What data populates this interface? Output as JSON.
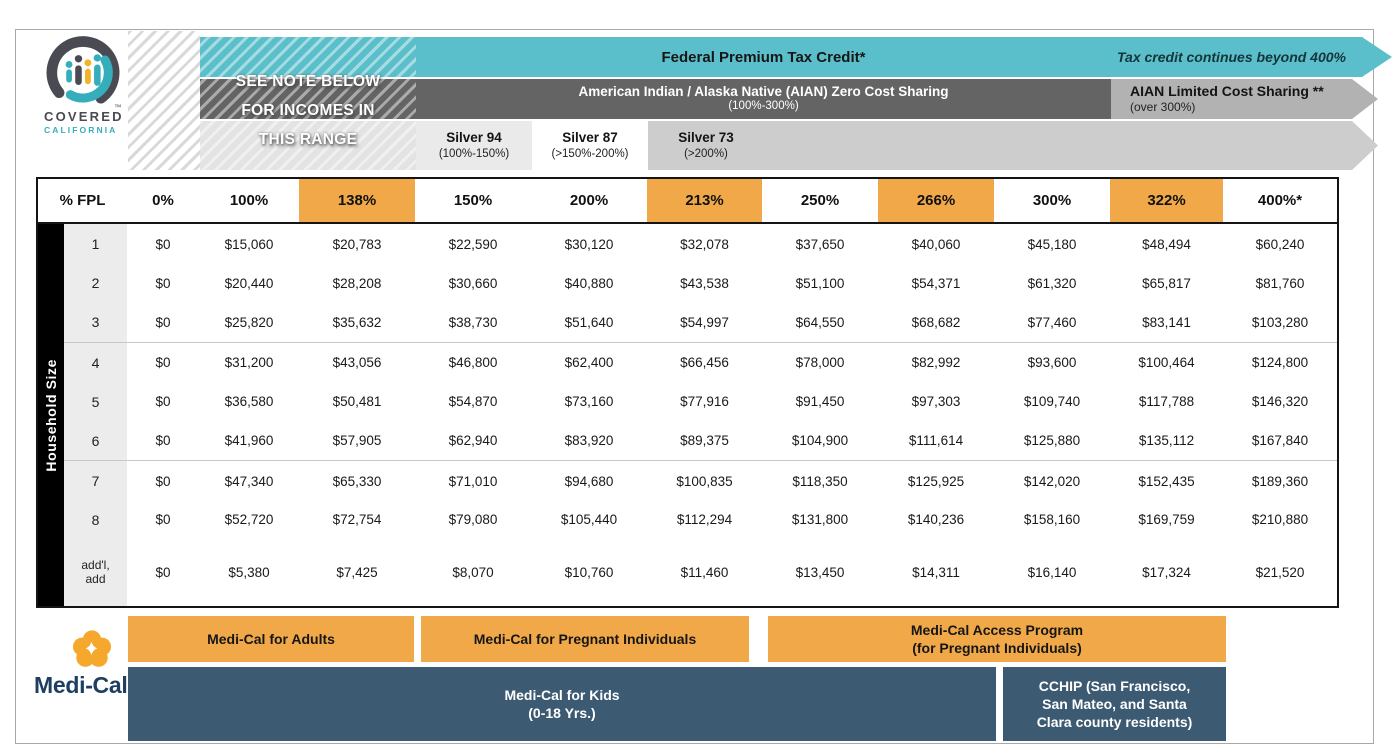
{
  "page": {
    "logo": {
      "word1": "COVERED",
      "word2": "CALIFORNIA",
      "tm": "™"
    },
    "banner": {
      "note_line1": "SEE NOTE BELOW",
      "note_line2": "FOR INCOMES IN",
      "note_line3": "THIS RANGE",
      "federal_label": "Federal Premium Tax Credit*",
      "federal_note": "Tax credit continues beyond 400%",
      "aian_zero_label": "American Indian / Alaska Native (AIAN) Zero Cost Sharing",
      "aian_zero_range": "(100%-300%)",
      "aian_limited_label": "AIAN Limited Cost Sharing **",
      "aian_limited_range": "(over 300%)",
      "silver94_name": "Silver 94",
      "silver94_range": "(100%-150%)",
      "silver87_name": "Silver 87",
      "silver87_range": "(>150%-200%)",
      "silver73_name": "Silver 73",
      "silver73_range": "(>200%)"
    },
    "medical": {
      "wordmark": "Medi-Cal",
      "adults": "Medi-Cal for Adults",
      "pregnant": "Medi-Cal for Pregnant Individuals",
      "access_line1": "Medi-Cal Access Program",
      "access_line2": "(for Pregnant Individuals)",
      "kids_line1": "Medi-Cal for Kids",
      "kids_line2": "(0-18 Yrs.)",
      "cchip_line1": "CCHIP (San Francisco,",
      "cchip_line2": "San Mateo, and Santa",
      "cchip_line3": "Clara county residents)"
    },
    "colors": {
      "teal_band": "#5bbfcb",
      "dark_gray_band": "#646464",
      "mid_gray_band": "#b2b2b2",
      "silver_band": "#cdcdcd",
      "header_orange": "#f0a848",
      "medical_blue": "#3c5a72",
      "medical_navy": "#1d3f61",
      "poppy_orange": "#f5a82b",
      "logo_teal": "#35aebc",
      "logo_gray": "#4a4a52"
    }
  },
  "chart_data": {
    "type": "table",
    "side_label": "Household Size",
    "corner_header": "% FPL",
    "columns": [
      "0%",
      "100%",
      "138%",
      "150%",
      "200%",
      "213%",
      "250%",
      "266%",
      "300%",
      "322%",
      "400%*"
    ],
    "highlighted_columns": [
      "138%",
      "213%",
      "266%",
      "322%"
    ],
    "rows": [
      {
        "label": "1",
        "values": [
          "$0",
          "$15,060",
          "$20,783",
          "$22,590",
          "$30,120",
          "$32,078",
          "$37,650",
          "$40,060",
          "$45,180",
          "$48,494",
          "$60,240"
        ]
      },
      {
        "label": "2",
        "values": [
          "$0",
          "$20,440",
          "$28,208",
          "$30,660",
          "$40,880",
          "$43,538",
          "$51,100",
          "$54,371",
          "$61,320",
          "$65,817",
          "$81,760"
        ]
      },
      {
        "label": "3",
        "values": [
          "$0",
          "$25,820",
          "$35,632",
          "$38,730",
          "$51,640",
          "$54,997",
          "$64,550",
          "$68,682",
          "$77,460",
          "$83,141",
          "$103,280"
        ]
      },
      {
        "label": "4",
        "values": [
          "$0",
          "$31,200",
          "$43,056",
          "$46,800",
          "$62,400",
          "$66,456",
          "$78,000",
          "$82,992",
          "$93,600",
          "$100,464",
          "$124,800"
        ]
      },
      {
        "label": "5",
        "values": [
          "$0",
          "$36,580",
          "$50,481",
          "$54,870",
          "$73,160",
          "$77,916",
          "$91,450",
          "$97,303",
          "$109,740",
          "$117,788",
          "$146,320"
        ]
      },
      {
        "label": "6",
        "values": [
          "$0",
          "$41,960",
          "$57,905",
          "$62,940",
          "$83,920",
          "$89,375",
          "$104,900",
          "$111,614",
          "$125,880",
          "$135,112",
          "$167,840"
        ]
      },
      {
        "label": "7",
        "values": [
          "$0",
          "$47,340",
          "$65,330",
          "$71,010",
          "$94,680",
          "$100,835",
          "$118,350",
          "$125,925",
          "$142,020",
          "$152,435",
          "$189,360"
        ]
      },
      {
        "label": "8",
        "values": [
          "$0",
          "$52,720",
          "$72,754",
          "$79,080",
          "$105,440",
          "$112,294",
          "$131,800",
          "$140,236",
          "$158,160",
          "$169,759",
          "$210,880"
        ]
      },
      {
        "label": "add'l,",
        "label2": "add",
        "values": [
          "$0",
          "$5,380",
          "$7,425",
          "$8,070",
          "$10,760",
          "$11,460",
          "$13,450",
          "$14,311",
          "$16,140",
          "$17,324",
          "$21,520"
        ]
      }
    ]
  }
}
